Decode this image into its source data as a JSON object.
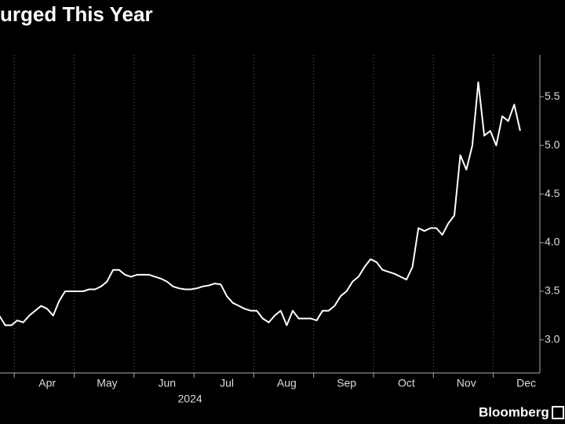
{
  "chart_data": {
    "type": "line",
    "title": "urged This Year",
    "year_label": "2024",
    "source": "Bloomberg",
    "categories": [
      null,
      null,
      null,
      null,
      null,
      null,
      null,
      null,
      "Apr",
      null,
      null,
      null,
      null,
      null,
      null,
      null,
      null,
      null,
      "May",
      null,
      null,
      null,
      null,
      null,
      null,
      null,
      null,
      null,
      "Jun",
      null,
      null,
      null,
      null,
      null,
      null,
      null,
      null,
      null,
      "Jul",
      null,
      null,
      null,
      null,
      null,
      null,
      null,
      null,
      null,
      "Aug",
      null,
      null,
      null,
      null,
      null,
      null,
      null,
      null,
      null,
      "Sep",
      null,
      null,
      null,
      null,
      null,
      null,
      null,
      null,
      null,
      "Oct",
      null,
      null,
      null,
      null,
      null,
      null,
      null,
      null,
      null,
      "Nov",
      null,
      null,
      null,
      null,
      null,
      null,
      null,
      null,
      null,
      "Dec"
    ],
    "series": [
      {
        "color": "#ffffff",
        "values": [
          3.25,
          3.15,
          3.15,
          3.2,
          3.18,
          3.25,
          3.3,
          3.35,
          3.32,
          3.25,
          3.4,
          3.5,
          3.5,
          3.5,
          3.5,
          3.52,
          3.52,
          3.55,
          3.6,
          3.72,
          3.72,
          3.67,
          3.65,
          3.67,
          3.67,
          3.67,
          3.65,
          3.63,
          3.6,
          3.55,
          3.53,
          3.52,
          3.52,
          3.53,
          3.55,
          3.56,
          3.58,
          3.57,
          3.45,
          3.38,
          3.35,
          3.32,
          3.3,
          3.3,
          3.22,
          3.18,
          3.25,
          3.3,
          3.15,
          3.3,
          3.22,
          3.22,
          3.22,
          3.2,
          3.3,
          3.3,
          3.35,
          3.45,
          3.5,
          3.6,
          3.65,
          3.75,
          3.83,
          3.8,
          3.72,
          3.7,
          3.68,
          3.65,
          3.62,
          3.75,
          4.15,
          4.12,
          4.15,
          4.15,
          4.08,
          4.2,
          4.28,
          4.9,
          4.75,
          5.0,
          5.65,
          5.1,
          5.15,
          5.0,
          5.3,
          5.25,
          5.42,
          5.15,
          null
        ]
      }
    ],
    "ylim": [
      2.66,
      5.93
    ],
    "yticks": [
      {
        "value": 3,
        "label": "3.0"
      },
      {
        "value": 3.5,
        "label": "3.5"
      },
      {
        "value": 4,
        "label": "4.0"
      },
      {
        "value": 4.5,
        "label": "4.5"
      },
      {
        "value": 5,
        "label": "5.0"
      },
      {
        "value": 5.5,
        "label": "5.5"
      }
    ]
  }
}
